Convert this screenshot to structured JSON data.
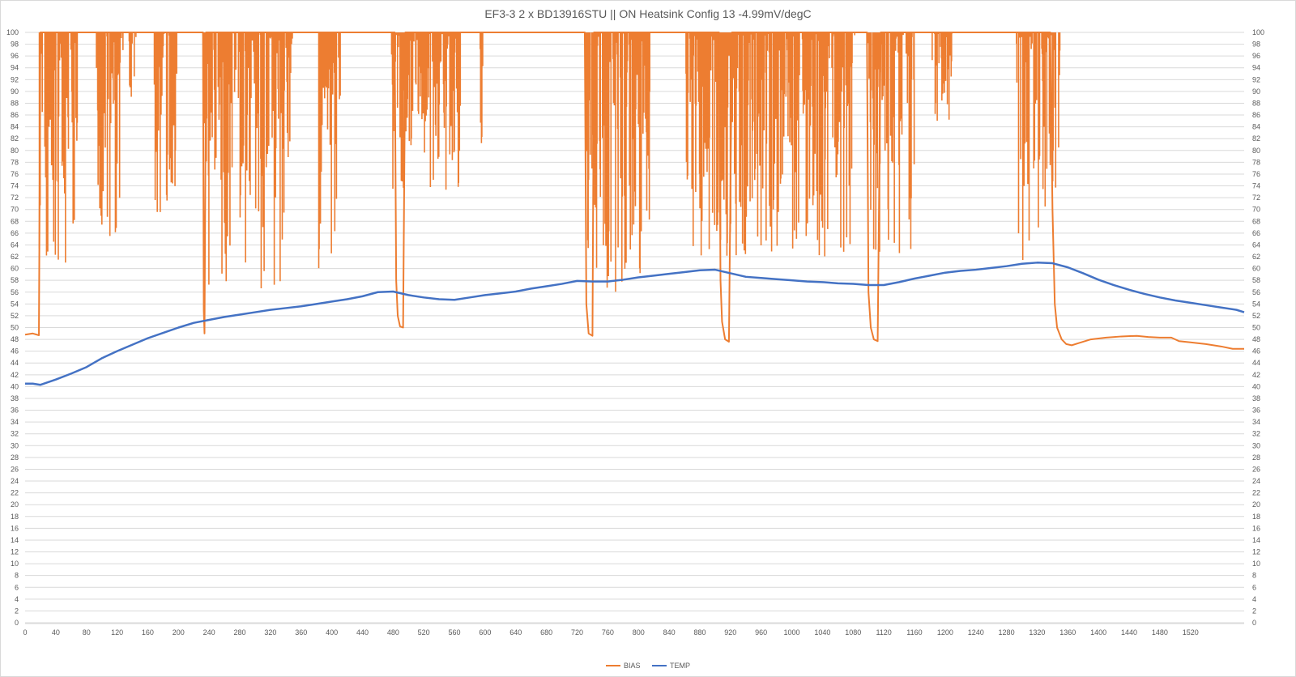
{
  "chart_data": {
    "type": "line",
    "title": "EF3-3 2 x BD13916STU || ON Heatsink Config 13 -4.99mV/degC",
    "xlabel": "",
    "ylabel": "",
    "xlim": [
      0,
      1590
    ],
    "ylim": [
      0,
      100
    ],
    "y_ticks": [
      0,
      2,
      4,
      6,
      8,
      10,
      12,
      14,
      16,
      18,
      20,
      22,
      24,
      26,
      28,
      30,
      32,
      34,
      36,
      38,
      40,
      42,
      44,
      46,
      48,
      50,
      52,
      54,
      56,
      58,
      60,
      62,
      64,
      66,
      68,
      70,
      72,
      74,
      76,
      78,
      80,
      82,
      84,
      86,
      88,
      90,
      92,
      94,
      96,
      98,
      100
    ],
    "x_ticks": [
      0,
      40,
      80,
      120,
      160,
      200,
      240,
      280,
      320,
      360,
      400,
      440,
      480,
      520,
      560,
      600,
      640,
      680,
      720,
      760,
      800,
      840,
      880,
      920,
      960,
      1000,
      1040,
      1080,
      1120,
      1160,
      1200,
      1240,
      1280,
      1320,
      1360,
      1400,
      1440,
      1480,
      1520
    ],
    "secondary_y_axis": true,
    "grid": true,
    "legend": "bottom",
    "series": [
      {
        "name": "BIAS",
        "color": "#ed7d31",
        "bursts": [
          {
            "x_start": 18,
            "x_end": 70,
            "min_low": 60
          },
          {
            "x_start": 93,
            "x_end": 128,
            "min_low": 65
          },
          {
            "x_start": 133,
            "x_end": 145,
            "min_low": 88
          },
          {
            "x_start": 168,
            "x_end": 198,
            "min_low": 69
          },
          {
            "x_start": 232,
            "x_end": 350,
            "min_low": 56
          },
          {
            "x_start": 383,
            "x_end": 412,
            "min_low": 60
          },
          {
            "x_start": 478,
            "x_end": 568,
            "min_low": 72
          },
          {
            "x_start": 593,
            "x_end": 597,
            "min_low": 80
          },
          {
            "x_start": 730,
            "x_end": 815,
            "min_low": 56
          },
          {
            "x_start": 862,
            "x_end": 1082,
            "min_low": 62
          },
          {
            "x_start": 1098,
            "x_end": 1160,
            "min_low": 60
          },
          {
            "x_start": 1182,
            "x_end": 1210,
            "min_low": 84
          },
          {
            "x_start": 1293,
            "x_end": 1350,
            "min_low": 60
          }
        ],
        "points": [
          [
            0,
            48.8
          ],
          [
            10,
            49
          ],
          [
            18,
            48.7
          ],
          [
            20,
            100
          ],
          [
            232,
            100
          ],
          [
            233,
            53
          ],
          [
            234,
            49
          ],
          [
            236,
            100
          ],
          [
            482,
            100
          ],
          [
            484,
            58
          ],
          [
            486,
            52
          ],
          [
            489,
            50.2
          ],
          [
            493,
            50
          ],
          [
            496,
            100
          ],
          [
            730,
            100
          ],
          [
            732,
            54
          ],
          [
            735,
            49
          ],
          [
            740,
            48.6
          ],
          [
            742,
            100
          ],
          [
            905,
            100
          ],
          [
            907,
            58
          ],
          [
            909,
            51
          ],
          [
            913,
            48
          ],
          [
            918,
            47.6
          ],
          [
            922,
            100
          ],
          [
            1098,
            100
          ],
          [
            1100,
            56
          ],
          [
            1103,
            50
          ],
          [
            1107,
            48
          ],
          [
            1112,
            47.7
          ],
          [
            1116,
            100
          ],
          [
            1337,
            100
          ],
          [
            1340,
            70
          ],
          [
            1343,
            54
          ],
          [
            1346,
            50
          ],
          [
            1352,
            48
          ],
          [
            1358,
            47.2
          ],
          [
            1365,
            47
          ],
          [
            1375,
            47.4
          ],
          [
            1390,
            48
          ],
          [
            1410,
            48.3
          ],
          [
            1430,
            48.5
          ],
          [
            1450,
            48.6
          ],
          [
            1465,
            48.4
          ],
          [
            1480,
            48.3
          ],
          [
            1495,
            48.3
          ],
          [
            1505,
            47.7
          ],
          [
            1520,
            47.5
          ],
          [
            1540,
            47.2
          ],
          [
            1560,
            46.8
          ],
          [
            1575,
            46.4
          ],
          [
            1590,
            46.4
          ]
        ]
      },
      {
        "name": "TEMP",
        "color": "#4472c4",
        "points": [
          [
            0,
            40.5
          ],
          [
            10,
            40.5
          ],
          [
            20,
            40.3
          ],
          [
            40,
            41.2
          ],
          [
            60,
            42.2
          ],
          [
            80,
            43.3
          ],
          [
            100,
            44.8
          ],
          [
            120,
            46
          ],
          [
            140,
            47.1
          ],
          [
            160,
            48.2
          ],
          [
            180,
            49.1
          ],
          [
            200,
            50
          ],
          [
            220,
            50.8
          ],
          [
            240,
            51.3
          ],
          [
            260,
            51.8
          ],
          [
            280,
            52.2
          ],
          [
            300,
            52.6
          ],
          [
            320,
            53
          ],
          [
            340,
            53.3
          ],
          [
            360,
            53.6
          ],
          [
            380,
            54
          ],
          [
            400,
            54.4
          ],
          [
            420,
            54.8
          ],
          [
            440,
            55.3
          ],
          [
            460,
            56
          ],
          [
            480,
            56.1
          ],
          [
            500,
            55.5
          ],
          [
            520,
            55.1
          ],
          [
            540,
            54.8
          ],
          [
            560,
            54.7
          ],
          [
            580,
            55.1
          ],
          [
            600,
            55.5
          ],
          [
            620,
            55.8
          ],
          [
            640,
            56.1
          ],
          [
            660,
            56.6
          ],
          [
            680,
            57
          ],
          [
            700,
            57.4
          ],
          [
            720,
            57.9
          ],
          [
            740,
            57.8
          ],
          [
            760,
            57.8
          ],
          [
            780,
            58.1
          ],
          [
            800,
            58.5
          ],
          [
            820,
            58.8
          ],
          [
            840,
            59.1
          ],
          [
            860,
            59.4
          ],
          [
            880,
            59.7
          ],
          [
            900,
            59.8
          ],
          [
            920,
            59.2
          ],
          [
            940,
            58.6
          ],
          [
            960,
            58.4
          ],
          [
            980,
            58.2
          ],
          [
            1000,
            58
          ],
          [
            1020,
            57.8
          ],
          [
            1040,
            57.7
          ],
          [
            1060,
            57.5
          ],
          [
            1080,
            57.4
          ],
          [
            1100,
            57.2
          ],
          [
            1120,
            57.2
          ],
          [
            1140,
            57.7
          ],
          [
            1160,
            58.3
          ],
          [
            1180,
            58.8
          ],
          [
            1200,
            59.3
          ],
          [
            1220,
            59.6
          ],
          [
            1240,
            59.8
          ],
          [
            1260,
            60.1
          ],
          [
            1280,
            60.4
          ],
          [
            1300,
            60.8
          ],
          [
            1320,
            61
          ],
          [
            1340,
            60.9
          ],
          [
            1360,
            60.2
          ],
          [
            1380,
            59.2
          ],
          [
            1400,
            58.1
          ],
          [
            1420,
            57.2
          ],
          [
            1440,
            56.4
          ],
          [
            1460,
            55.7
          ],
          [
            1480,
            55.1
          ],
          [
            1500,
            54.6
          ],
          [
            1520,
            54.2
          ],
          [
            1540,
            53.8
          ],
          [
            1560,
            53.4
          ],
          [
            1580,
            53
          ],
          [
            1590,
            52.6
          ]
        ]
      }
    ]
  }
}
